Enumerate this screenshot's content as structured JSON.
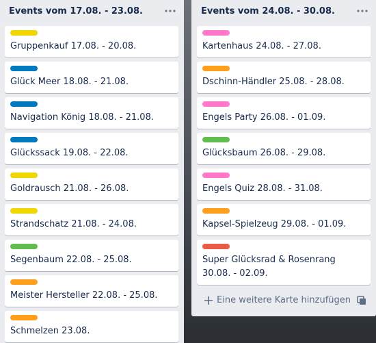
{
  "lists": [
    {
      "title": "Events vom 17.08. - 23.08.",
      "cards": [
        {
          "label_color": "#f2d600",
          "text": "Gruppenkauf 17.08. - 20.08."
        },
        {
          "label_color": "#0079bf",
          "text": "Glück Meer 18.08. - 21.08."
        },
        {
          "label_color": "#0079bf",
          "text": "Navigation König 18.08. - 21.08."
        },
        {
          "label_color": "#0079bf",
          "text": "Glückssack 19.08. - 22.08."
        },
        {
          "label_color": "#f2d600",
          "text": "Goldrausch 21.08. - 26.08."
        },
        {
          "label_color": "#f2d600",
          "text": "Strandschatz 21.08. - 24.08."
        },
        {
          "label_color": "#61bd4f",
          "text": "Segenbaum 22.08. - 25.08."
        },
        {
          "label_color": "#ff9f1a",
          "text": "Meister Hersteller 22.08. - 25.08."
        },
        {
          "label_color": "#ff9f1a",
          "text": "Schmelzen 23.08."
        }
      ]
    },
    {
      "title": "Events vom 24.08. - 30.08.",
      "cards": [
        {
          "label_color": "#ff78cb",
          "text": "Kartenhaus 24.08. - 27.08."
        },
        {
          "label_color": "#ff9f1a",
          "text": "Dschinn-Händler 25.08. - 28.08."
        },
        {
          "label_color": "#ff78cb",
          "text": "Engels Party 26.08. - 01.09."
        },
        {
          "label_color": "#61bd4f",
          "text": "Glücksbaum 26.08. - 29.08."
        },
        {
          "label_color": "#ff78cb",
          "text": "Engels Quiz 28.08. - 31.08."
        },
        {
          "label_color": "#ff9f1a",
          "text": "Kapsel-Spielzeug 29.08. - 01.09."
        },
        {
          "label_color": "#eb5a46",
          "text": "Super Glücksrad & Rosenrang 30.08. - 02.09."
        }
      ],
      "footer": "Eine weitere Karte hinzufügen"
    }
  ]
}
